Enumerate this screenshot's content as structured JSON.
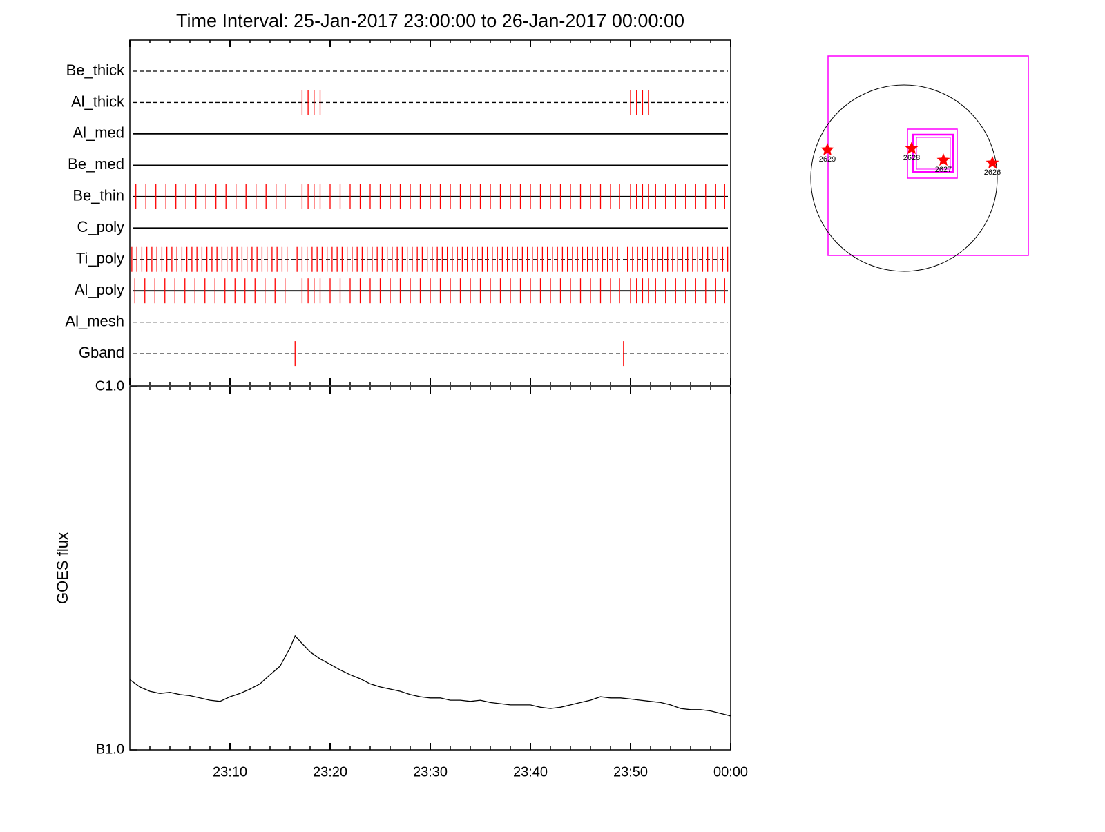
{
  "chart_data": [
    {
      "type": "timeline",
      "title": "Time Interval: 25-Jan-2017 23:00:00 to 26-Jan-2017 00:00:00",
      "categories": [
        "Be_thick",
        "Al_thick",
        "Al_med",
        "Be_med",
        "Be_thin",
        "C_poly",
        "Ti_poly",
        "Al_poly",
        "Al_mesh",
        "Gband"
      ],
      "line_styles": [
        "dashed",
        "dashed",
        "solid",
        "solid",
        "solid",
        "solid",
        "dashed",
        "solid",
        "dashed",
        "dashed"
      ],
      "color": "#ff0000",
      "events": [
        [],
        [
          17.2,
          17.8,
          18.4,
          19.0,
          50.0,
          50.6,
          51.2,
          51.8
        ],
        [],
        [],
        [
          0.6,
          1.6,
          2.6,
          3.6,
          4.6,
          5.6,
          6.6,
          7.6,
          8.6,
          9.6,
          10.6,
          11.6,
          12.6,
          13.6,
          14.6,
          15.5,
          17.2,
          17.8,
          18.4,
          19.0,
          20.0,
          21.0,
          22.0,
          23.0,
          24.0,
          25.0,
          26.0,
          27.0,
          28.0,
          29.0,
          30.0,
          31.0,
          32.0,
          33.0,
          34.0,
          35.0,
          36.0,
          37.0,
          38.0,
          39.0,
          40.0,
          41.0,
          42.0,
          43.0,
          44.0,
          45.0,
          46.0,
          47.0,
          48.0,
          48.9,
          50.0,
          50.6,
          51.2,
          51.8,
          52.5,
          53.5,
          54.5,
          55.5,
          56.5,
          57.5,
          58.5,
          59.4
        ],
        [],
        [
          0.2,
          0.7,
          1.2,
          1.7,
          2.2,
          2.7,
          3.2,
          3.7,
          4.2,
          4.7,
          5.2,
          5.7,
          6.2,
          6.7,
          7.2,
          7.7,
          8.2,
          8.7,
          9.2,
          9.7,
          10.2,
          10.7,
          11.2,
          11.7,
          12.2,
          12.7,
          13.2,
          13.7,
          14.2,
          14.7,
          15.2,
          15.7,
          16.7,
          17.2,
          17.7,
          18.2,
          18.7,
          19.2,
          19.7,
          20.2,
          20.7,
          21.2,
          21.7,
          22.2,
          22.7,
          23.2,
          23.7,
          24.2,
          24.7,
          25.2,
          25.7,
          26.2,
          26.7,
          27.2,
          27.7,
          28.2,
          28.7,
          29.2,
          29.7,
          30.2,
          30.7,
          31.2,
          31.7,
          32.2,
          32.7,
          33.2,
          33.7,
          34.2,
          34.7,
          35.2,
          35.7,
          36.2,
          36.7,
          37.2,
          37.7,
          38.2,
          38.7,
          39.2,
          39.7,
          40.2,
          40.7,
          41.2,
          41.7,
          42.2,
          42.7,
          43.2,
          43.7,
          44.2,
          44.7,
          45.2,
          45.7,
          46.2,
          46.7,
          47.2,
          47.7,
          48.2,
          48.7,
          49.7,
          50.2,
          50.7,
          51.2,
          51.7,
          52.2,
          52.7,
          53.2,
          53.7,
          54.2,
          54.7,
          55.2,
          55.7,
          56.2,
          56.7,
          57.2,
          57.7,
          58.2,
          58.7,
          59.2,
          59.7
        ],
        [
          0.5,
          1.5,
          2.5,
          3.5,
          4.5,
          5.5,
          6.5,
          7.5,
          8.5,
          9.5,
          10.5,
          11.5,
          12.5,
          13.5,
          14.5,
          15.5,
          17.2,
          17.8,
          18.4,
          19.0,
          20.0,
          21.0,
          22.0,
          23.0,
          24.0,
          25.0,
          26.0,
          27.0,
          28.0,
          29.0,
          30.0,
          31.0,
          32.0,
          33.0,
          34.0,
          35.0,
          36.0,
          37.0,
          38.0,
          39.0,
          40.0,
          41.0,
          42.0,
          43.0,
          44.0,
          45.0,
          46.0,
          47.0,
          48.0,
          48.9,
          50.0,
          50.6,
          51.2,
          51.8,
          52.5,
          53.5,
          54.5,
          55.5,
          56.5,
          57.5,
          58.5,
          59.4
        ],
        [],
        [
          16.5,
          49.3
        ]
      ],
      "xlim": [
        0,
        60
      ],
      "xticks": [
        0,
        10,
        20,
        30,
        40,
        50,
        60
      ],
      "xminor": [
        2,
        4,
        6,
        8,
        12,
        14,
        16,
        18,
        22,
        24,
        26,
        28,
        32,
        34,
        36,
        38,
        42,
        44,
        46,
        48,
        52,
        54,
        56,
        58
      ]
    },
    {
      "type": "line",
      "ylabel": "GOES flux",
      "log_scale": true,
      "color": "#000000",
      "x": [
        0,
        1,
        2,
        3,
        4,
        5,
        6,
        7,
        8,
        9,
        10,
        11,
        12,
        13,
        14,
        15,
        16,
        16.5,
        17,
        18,
        19,
        20,
        21,
        22,
        23,
        24,
        25,
        26,
        27,
        28,
        29,
        30,
        31,
        32,
        33,
        34,
        35,
        36,
        37,
        38,
        39,
        40,
        41,
        42,
        43,
        44,
        45,
        46,
        47,
        48,
        49,
        50,
        51,
        52,
        53,
        54,
        55,
        56,
        57,
        58,
        59,
        60
      ],
      "values": [
        1.56e-07,
        1.49e-07,
        1.45e-07,
        1.43e-07,
        1.44e-07,
        1.42e-07,
        1.41e-07,
        1.39e-07,
        1.37e-07,
        1.36e-07,
        1.4e-07,
        1.43e-07,
        1.47e-07,
        1.52e-07,
        1.61e-07,
        1.7e-07,
        1.91e-07,
        2.06e-07,
        1.99e-07,
        1.86e-07,
        1.78e-07,
        1.72e-07,
        1.66e-07,
        1.61e-07,
        1.57e-07,
        1.52e-07,
        1.49e-07,
        1.47e-07,
        1.45e-07,
        1.42e-07,
        1.4e-07,
        1.39e-07,
        1.39e-07,
        1.37e-07,
        1.37e-07,
        1.36e-07,
        1.37e-07,
        1.35e-07,
        1.34e-07,
        1.33e-07,
        1.33e-07,
        1.33e-07,
        1.31e-07,
        1.3e-07,
        1.31e-07,
        1.33e-07,
        1.35e-07,
        1.37e-07,
        1.4e-07,
        1.39e-07,
        1.39e-07,
        1.38e-07,
        1.37e-07,
        1.36e-07,
        1.35e-07,
        1.33e-07,
        1.3e-07,
        1.29e-07,
        1.29e-07,
        1.28e-07,
        1.26e-07,
        1.24e-07
      ],
      "xlim": [
        0,
        60
      ],
      "xticks": [
        {
          "value": 10,
          "label": "23:10"
        },
        {
          "value": 20,
          "label": "23:20"
        },
        {
          "value": 30,
          "label": "23:30"
        },
        {
          "value": 40,
          "label": "23:40"
        },
        {
          "value": 50,
          "label": "23:50"
        },
        {
          "value": 60,
          "label": "00:00"
        }
      ],
      "xminor": [
        2,
        4,
        6,
        8,
        12,
        14,
        16,
        18,
        22,
        24,
        26,
        28,
        32,
        34,
        36,
        38,
        42,
        44,
        46,
        48,
        52,
        54,
        56,
        58
      ],
      "ylim": [
        1e-07,
        1e-06
      ],
      "yticks": [
        {
          "value": 1e-06,
          "label": "C1.0"
        },
        {
          "value": 1e-07,
          "label": "B1.0"
        }
      ]
    }
  ],
  "map": {
    "labels": [
      "2629",
      "2628",
      "2627",
      "2626"
    ]
  }
}
